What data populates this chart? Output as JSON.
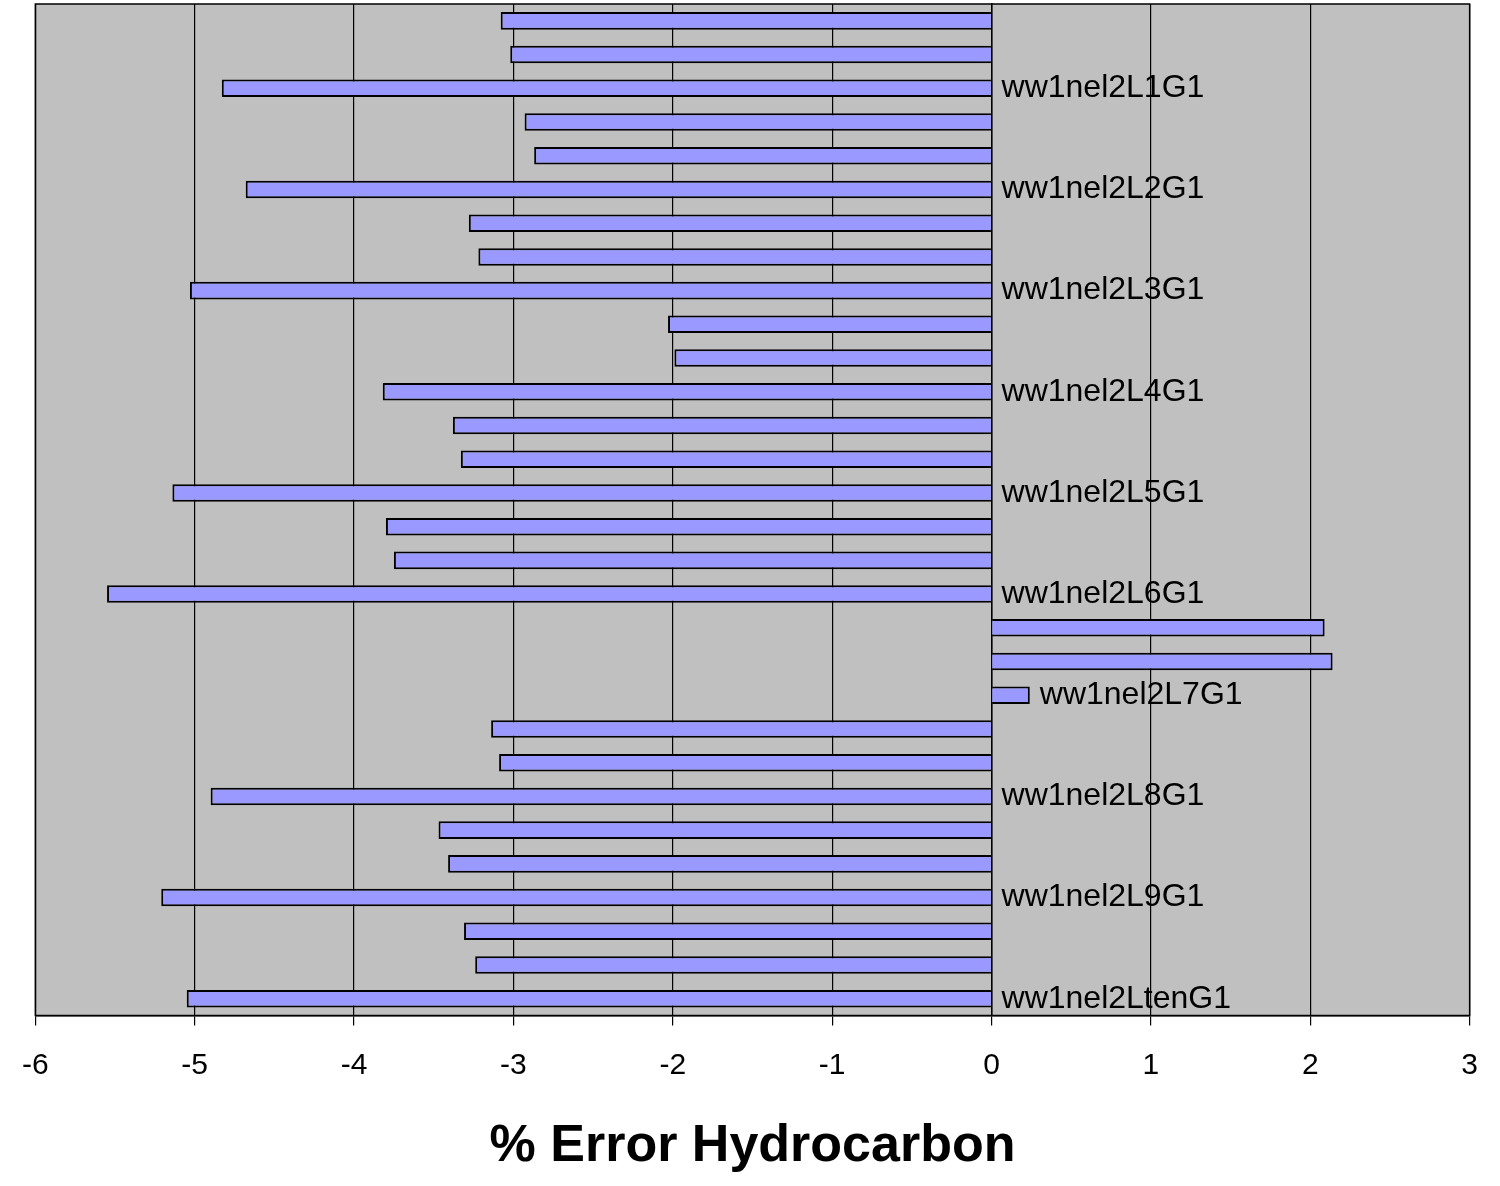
{
  "chart_data": {
    "type": "bar",
    "orientation": "horizontal",
    "xlabel": "% Error Hydrocarbon",
    "categories": [
      null,
      null,
      "ww1nel2L1G1",
      null,
      null,
      "ww1nel2L2G1",
      null,
      null,
      "ww1nel2L3G1",
      null,
      null,
      "ww1nel2L4G1",
      null,
      null,
      "ww1nel2L5G1",
      null,
      null,
      "ww1nel2L6G1",
      null,
      null,
      "ww1nel2L7G1",
      null,
      null,
      "ww1nel2L8G1",
      null,
      null,
      "ww1nel2L9G1",
      null,
      null,
      "ww1nel2LtenG1"
    ],
    "values": [
      -3.08,
      -3.02,
      -4.83,
      -2.93,
      -2.87,
      -4.68,
      -3.28,
      -3.22,
      -5.03,
      -2.03,
      -1.99,
      -3.82,
      -3.38,
      -3.33,
      -5.14,
      -3.8,
      -3.75,
      -5.55,
      2.09,
      2.14,
      0.24,
      -3.14,
      -3.09,
      -4.9,
      -3.47,
      -3.41,
      -5.21,
      -3.31,
      -3.24,
      -5.05
    ],
    "color": "#9999ff",
    "xlim": [
      -6,
      3
    ],
    "xticks": [
      -6,
      -5,
      -4,
      -3,
      -2,
      -1,
      0,
      1,
      2,
      3
    ],
    "grid": "x",
    "legend": false
  }
}
